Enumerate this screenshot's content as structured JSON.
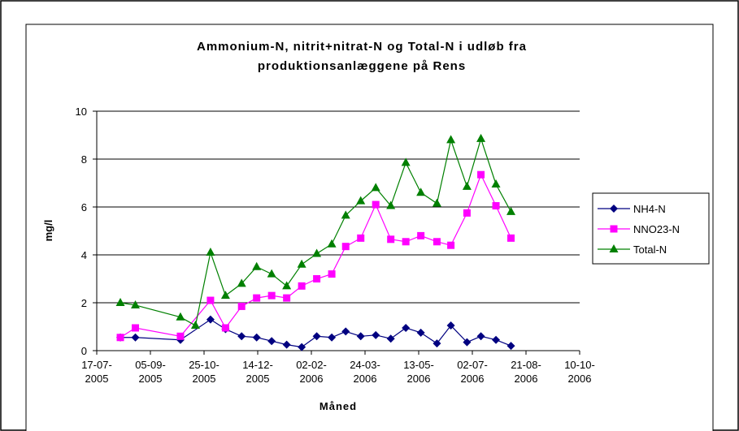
{
  "chart_data": {
    "type": "line",
    "title": "Ammonium-N, nitrit+nitrat-N og Total-N i udløb fra produktionsanlæggene på Rens",
    "x_label": "Måned",
    "y_label": "mg/l",
    "xlim": [
      "2005-07-17",
      "2006-10-10"
    ],
    "xticks": [
      {
        "value": "2005-07-17",
        "label": "17-07-2005"
      },
      {
        "value": "2005-09-05",
        "label": "05-09-2005"
      },
      {
        "value": "2005-10-25",
        "label": "25-10-2005"
      },
      {
        "value": "2005-12-14",
        "label": "14-12-2005"
      },
      {
        "value": "2006-02-02",
        "label": "02-02-2006"
      },
      {
        "value": "2006-03-24",
        "label": "24-03-2006"
      },
      {
        "value": "2006-05-13",
        "label": "13-05-2006"
      },
      {
        "value": "2006-07-02",
        "label": "02-07-2006"
      },
      {
        "value": "2006-08-21",
        "label": "21-08-2006"
      },
      {
        "value": "2006-10-10",
        "label": "10-10-2006"
      }
    ],
    "ylim": [
      0,
      10
    ],
    "yticks": [
      0,
      2,
      4,
      6,
      8,
      10
    ],
    "grid": true,
    "legend": "right",
    "series": [
      {
        "name": "NH4-N",
        "color": "#000080",
        "marker": "diamond",
        "x": [
          "2005-08-08",
          "2005-08-22",
          "2005-10-03",
          "2005-10-31",
          "2005-11-14",
          "2005-11-29",
          "2005-12-13",
          "2005-12-27",
          "2006-01-10",
          "2006-01-24",
          "2006-02-07",
          "2006-02-21",
          "2006-03-06",
          "2006-03-20",
          "2006-04-03",
          "2006-04-17",
          "2006-05-01",
          "2006-05-15",
          "2006-05-30",
          "2006-06-12",
          "2006-06-27",
          "2006-07-10",
          "2006-07-24",
          "2006-08-07"
        ],
        "values": [
          0.55,
          0.55,
          0.45,
          1.3,
          0.9,
          0.6,
          0.55,
          0.4,
          0.25,
          0.15,
          0.6,
          0.55,
          0.8,
          0.6,
          0.65,
          0.5,
          0.95,
          0.75,
          0.3,
          1.05,
          0.35,
          0.6,
          0.45,
          0.2
        ]
      },
      {
        "name": "NNO23-N",
        "color": "#FF00FF",
        "marker": "square",
        "x": [
          "2005-08-08",
          "2005-08-22",
          "2005-10-03",
          "2005-10-31",
          "2005-11-14",
          "2005-11-29",
          "2005-12-13",
          "2005-12-27",
          "2006-01-10",
          "2006-01-24",
          "2006-02-07",
          "2006-02-21",
          "2006-03-06",
          "2006-03-20",
          "2006-04-03",
          "2006-04-17",
          "2006-05-01",
          "2006-05-15",
          "2006-05-30",
          "2006-06-12",
          "2006-06-27",
          "2006-07-10",
          "2006-07-24",
          "2006-08-07"
        ],
        "values": [
          0.55,
          0.95,
          0.6,
          2.1,
          0.95,
          1.85,
          2.2,
          2.3,
          2.2,
          2.7,
          3.0,
          3.2,
          4.35,
          4.7,
          6.1,
          4.65,
          4.55,
          4.8,
          4.55,
          4.4,
          5.75,
          7.35,
          6.05,
          4.7
        ]
      },
      {
        "name": "Total-N",
        "color": "#008000",
        "marker": "triangle",
        "x": [
          "2005-08-08",
          "2005-08-22",
          "2005-10-03",
          "2005-10-17",
          "2005-10-31",
          "2005-11-14",
          "2005-11-29",
          "2005-12-13",
          "2005-12-27",
          "2006-01-10",
          "2006-01-24",
          "2006-02-07",
          "2006-02-21",
          "2006-03-06",
          "2006-03-20",
          "2006-04-03",
          "2006-04-17",
          "2006-05-01",
          "2006-05-15",
          "2006-05-30",
          "2006-06-12",
          "2006-06-27",
          "2006-07-10",
          "2006-07-24",
          "2006-08-07"
        ],
        "values": [
          2.0,
          1.9,
          1.4,
          1.05,
          4.1,
          2.3,
          2.8,
          3.5,
          3.2,
          2.7,
          3.6,
          4.05,
          4.45,
          5.65,
          6.25,
          6.8,
          6.05,
          7.85,
          6.6,
          6.15,
          8.8,
          6.85,
          8.85,
          6.95,
          5.8
        ]
      }
    ]
  }
}
